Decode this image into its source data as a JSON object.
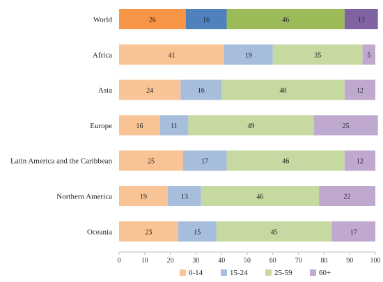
{
  "chart_data": {
    "type": "bar",
    "orientation": "horizontal",
    "stacked": true,
    "categories": [
      "World",
      "Africa",
      "Asia",
      "Europe",
      "Latin America and the Caribbean",
      "Northern America",
      "Oceania"
    ],
    "series": [
      {
        "name": "0-14",
        "values": [
          26,
          41,
          24,
          16,
          25,
          19,
          23
        ]
      },
      {
        "name": "15-24",
        "values": [
          16,
          19,
          16,
          11,
          17,
          13,
          15
        ]
      },
      {
        "name": "25-59",
        "values": [
          46,
          35,
          48,
          49,
          46,
          46,
          45
        ]
      },
      {
        "name": "60+",
        "values": [
          13,
          5,
          12,
          25,
          12,
          22,
          17
        ]
      }
    ],
    "colors": {
      "normal": [
        "#f9c495",
        "#a6bddb",
        "#c5d9a0",
        "#bfa9cf"
      ],
      "highlight": [
        "#f79646",
        "#4f81bd",
        "#9bbb59",
        "#8064a2"
      ]
    },
    "highlight_category": "World",
    "xlim": [
      0,
      100
    ],
    "xticks": [
      0,
      10,
      20,
      30,
      40,
      50,
      60,
      70,
      80,
      90,
      100
    ],
    "grid": false,
    "legend_position": "bottom"
  }
}
